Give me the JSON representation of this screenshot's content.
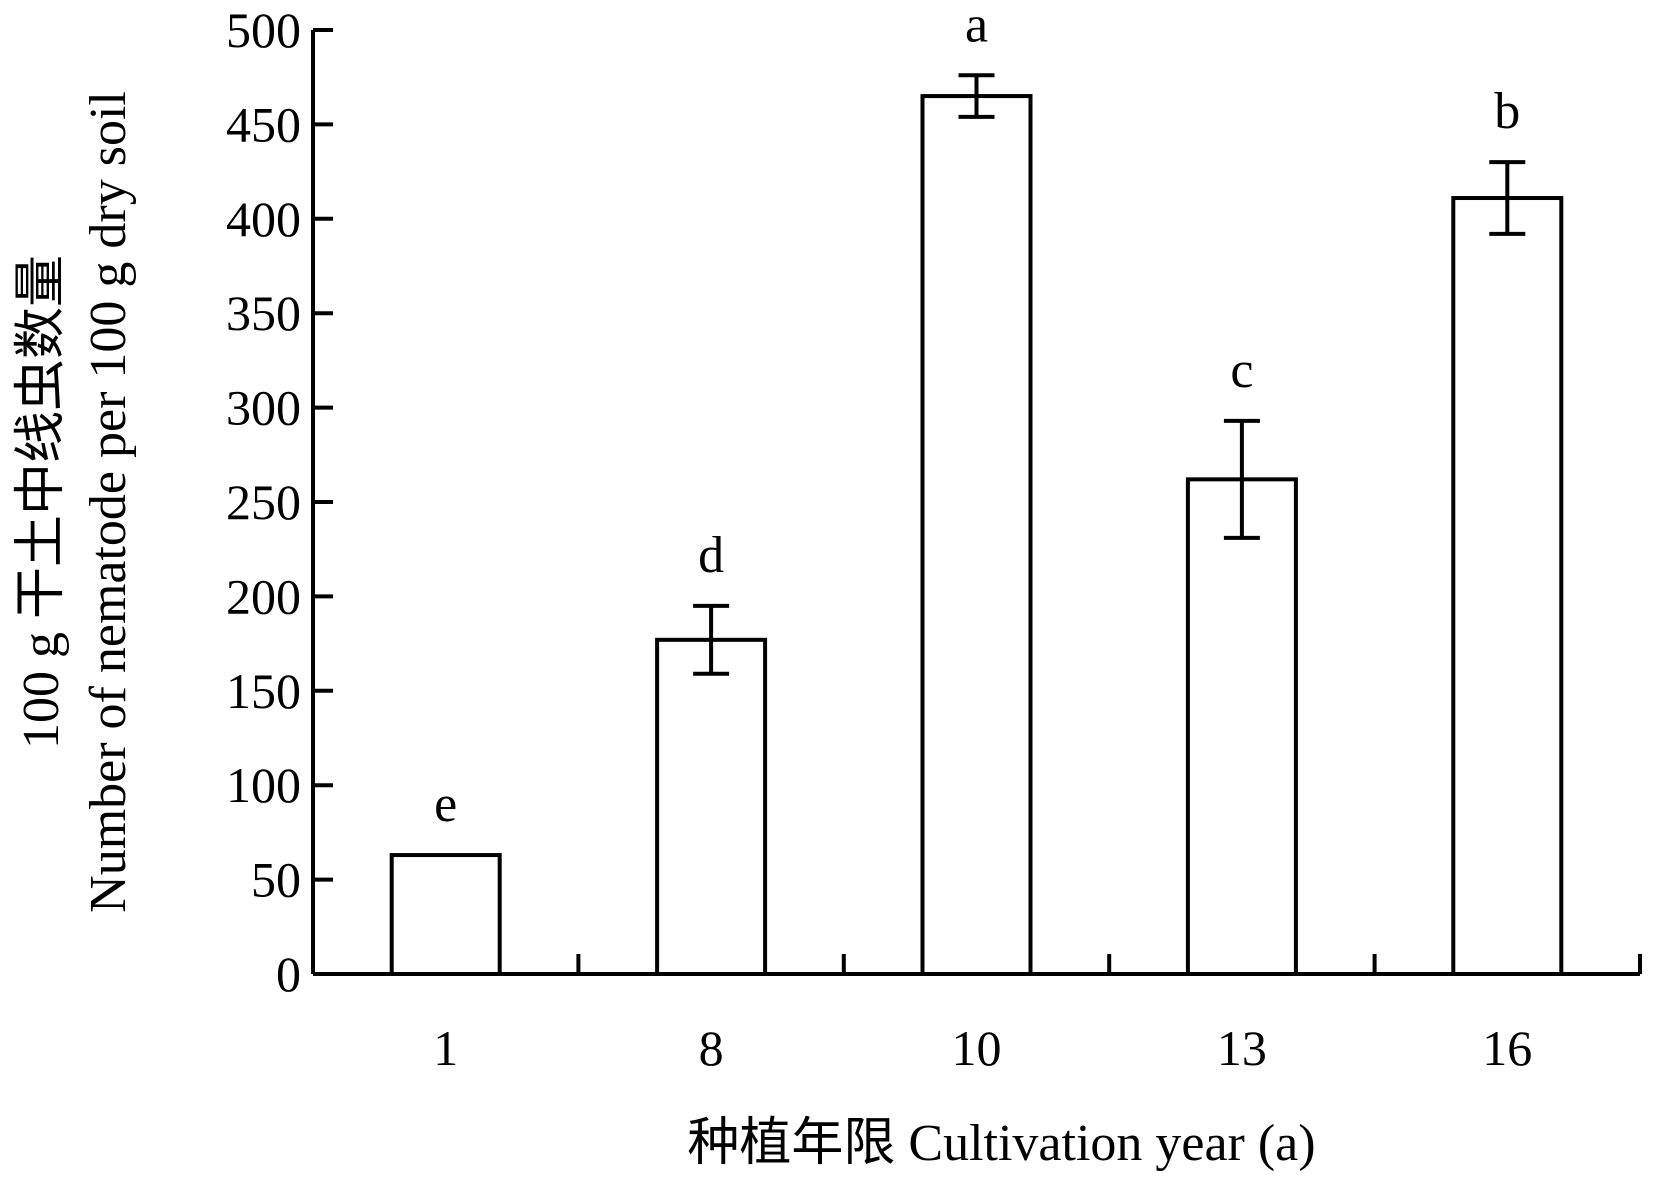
{
  "chart_data": {
    "type": "bar",
    "categories": [
      "1",
      "8",
      "10",
      "13",
      "16"
    ],
    "values": [
      63,
      177,
      465,
      262,
      411
    ],
    "errors": [
      0,
      18,
      11,
      31,
      19
    ],
    "significance_letters": [
      "e",
      "d",
      "a",
      "c",
      "b"
    ],
    "ylim": [
      0,
      500
    ],
    "yticks": [
      "0",
      "50",
      "100",
      "150",
      "200",
      "250",
      "300",
      "350",
      "400",
      "450",
      "500"
    ],
    "xlabel": "种植年限 Cultivation year (a)",
    "ylabel_line1": "100 g 干土中线虫数量",
    "ylabel_line2": "Number of nematode per 100 g dry soil",
    "grid": false,
    "legend": "none",
    "bar_fill": "#ffffff",
    "stroke_color": "#000000"
  }
}
